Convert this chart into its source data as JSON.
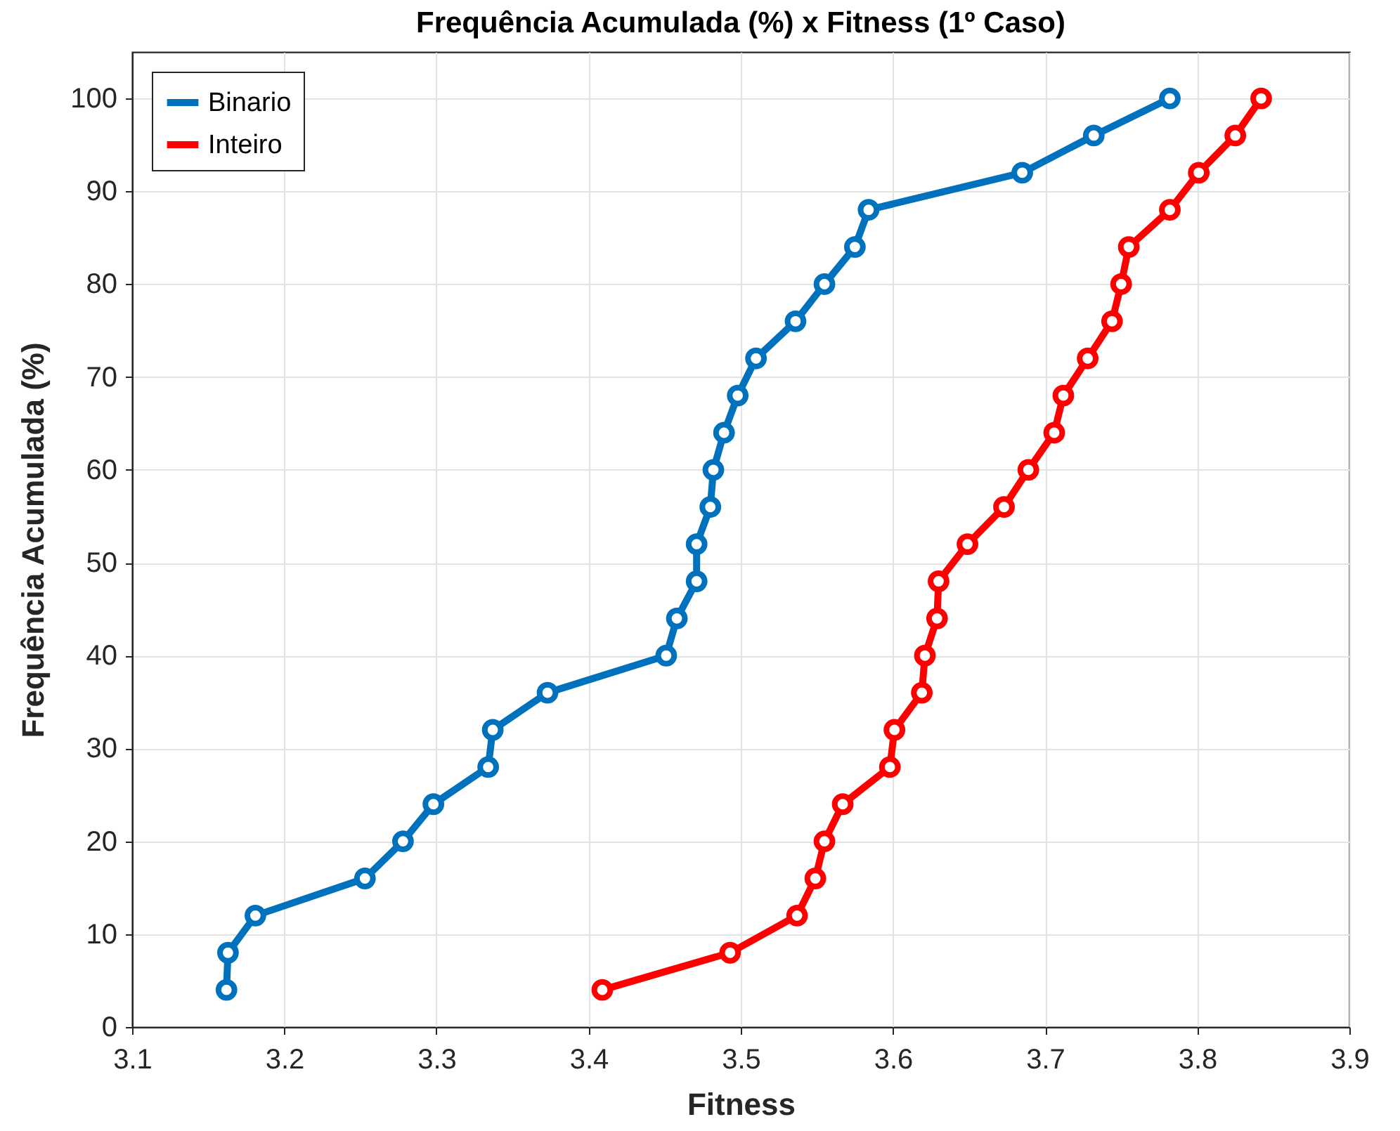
{
  "chart_data": {
    "type": "line",
    "title": "Frequência Acumulada (%) x Fitness (1º Caso)",
    "xlabel": "Fitness",
    "ylabel": "Frequência Acumulada (%)",
    "xlim": [
      3.1,
      3.9
    ],
    "xticks": [
      3.1,
      3.2,
      3.3,
      3.4,
      3.5,
      3.6,
      3.7,
      3.8,
      3.9
    ],
    "ylim": [
      0,
      105
    ],
    "yticks": [
      0,
      10,
      20,
      30,
      40,
      50,
      60,
      70,
      80,
      90,
      100
    ],
    "grid": true,
    "legend": "top left",
    "marker": "circle",
    "line_style": "solid",
    "series": [
      {
        "name": "Binario",
        "color": "#0072bd",
        "x": [
          3.162,
          3.163,
          3.181,
          3.253,
          3.278,
          3.298,
          3.334,
          3.337,
          3.373,
          3.451,
          3.458,
          3.471,
          3.471,
          3.48,
          3.482,
          3.489,
          3.498,
          3.51,
          3.536,
          3.555,
          3.575,
          3.584,
          3.685,
          3.732,
          3.782
        ],
        "values": [
          4,
          8,
          12,
          16,
          20,
          24,
          28,
          32,
          36,
          40,
          44,
          48,
          52,
          56,
          60,
          64,
          68,
          72,
          76,
          80,
          84,
          88,
          92,
          96,
          100
        ]
      },
      {
        "name": "Inteiro",
        "color": "#ff0000",
        "x": [
          3.409,
          3.493,
          3.537,
          3.549,
          3.555,
          3.567,
          3.598,
          3.601,
          3.619,
          3.621,
          3.629,
          3.63,
          3.649,
          3.673,
          3.689,
          3.706,
          3.712,
          3.728,
          3.744,
          3.75,
          3.755,
          3.782,
          3.801,
          3.825,
          3.842
        ],
        "values": [
          4,
          8,
          12,
          16,
          20,
          24,
          28,
          32,
          36,
          40,
          44,
          48,
          52,
          56,
          60,
          64,
          68,
          72,
          76,
          80,
          84,
          88,
          92,
          96,
          100
        ]
      }
    ]
  }
}
